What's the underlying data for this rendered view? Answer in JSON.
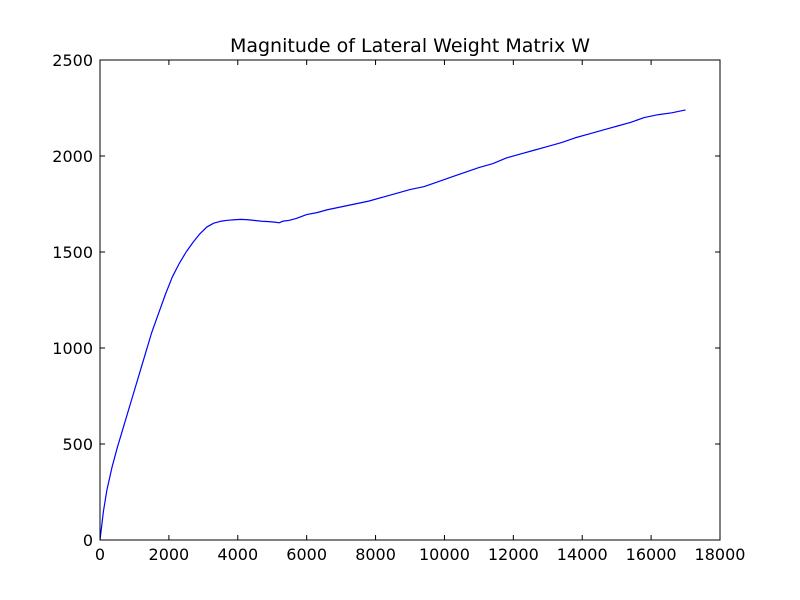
{
  "chart_data": {
    "type": "line",
    "title": "Magnitude of Lateral Weight Matrix W",
    "xlabel": "",
    "ylabel": "",
    "xlim": [
      0,
      18000
    ],
    "ylim": [
      0,
      2500
    ],
    "xticks": [
      0,
      2000,
      4000,
      6000,
      8000,
      10000,
      12000,
      14000,
      16000,
      18000
    ],
    "yticks": [
      0,
      500,
      1000,
      1500,
      2000,
      2500
    ],
    "grid": false,
    "legend": "none",
    "series": [
      {
        "color": "#0000ff",
        "x": [
          0,
          100,
          200,
          350,
          500,
          700,
          900,
          1100,
          1300,
          1500,
          1700,
          1900,
          2100,
          2300,
          2500,
          2700,
          2900,
          3100,
          3300,
          3500,
          3700,
          3900,
          4100,
          4300,
          4500,
          4700,
          4900,
          5100,
          5200,
          5300,
          5500,
          5700,
          6000,
          6300,
          6600,
          7000,
          7400,
          7800,
          8200,
          8600,
          9000,
          9400,
          9800,
          10200,
          10600,
          11000,
          11400,
          11800,
          12200,
          12600,
          13000,
          13400,
          13800,
          14200,
          14600,
          15000,
          15400,
          15800,
          16200,
          16600,
          17000
        ],
        "y": [
          0,
          150,
          260,
          380,
          480,
          600,
          720,
          840,
          960,
          1080,
          1180,
          1280,
          1370,
          1440,
          1500,
          1550,
          1595,
          1630,
          1650,
          1660,
          1665,
          1668,
          1670,
          1668,
          1664,
          1660,
          1658,
          1655,
          1652,
          1660,
          1665,
          1675,
          1695,
          1705,
          1720,
          1735,
          1750,
          1765,
          1785,
          1805,
          1825,
          1840,
          1865,
          1890,
          1915,
          1940,
          1960,
          1990,
          2010,
          2030,
          2050,
          2070,
          2095,
          2115,
          2135,
          2155,
          2175,
          2200,
          2215,
          2225,
          2240
        ]
      }
    ]
  }
}
